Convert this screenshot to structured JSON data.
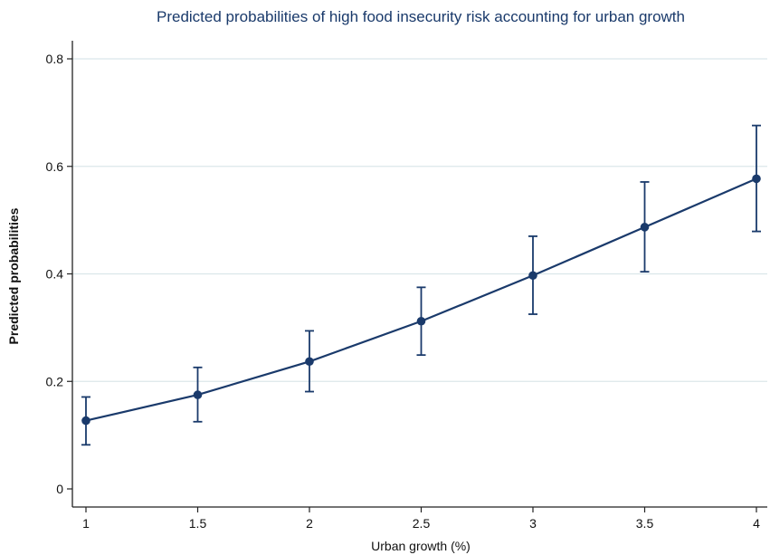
{
  "chart_data": {
    "type": "line",
    "title": "Predicted probabilities of high food insecurity risk accounting for urban growth",
    "xlabel": "Urban growth (%)",
    "ylabel": "Predicted probabilities",
    "x": [
      1,
      1.5,
      2,
      2.5,
      3,
      3.5,
      4
    ],
    "series": [
      {
        "values": [
          0.127,
          0.175,
          0.237,
          0.312,
          0.397,
          0.487,
          0.577
        ],
        "lower": [
          0.082,
          0.125,
          0.181,
          0.249,
          0.325,
          0.404,
          0.479
        ],
        "upper": [
          0.171,
          0.226,
          0.294,
          0.375,
          0.47,
          0.571,
          0.676
        ]
      }
    ],
    "x_ticks": [
      "1",
      "1.5",
      "2",
      "2.5",
      "3",
      "3.5",
      "4"
    ],
    "y_ticks": [
      "0",
      "0.2",
      "0.4",
      "0.6",
      "0.8"
    ],
    "xlim": [
      1,
      4
    ],
    "ylim": [
      0,
      0.8
    ],
    "grid": "horizontal",
    "colors": {
      "series": "#1a3a6b",
      "grid": "#dbe7ea",
      "axis": "#222222",
      "title": "#1a3a6b"
    }
  }
}
